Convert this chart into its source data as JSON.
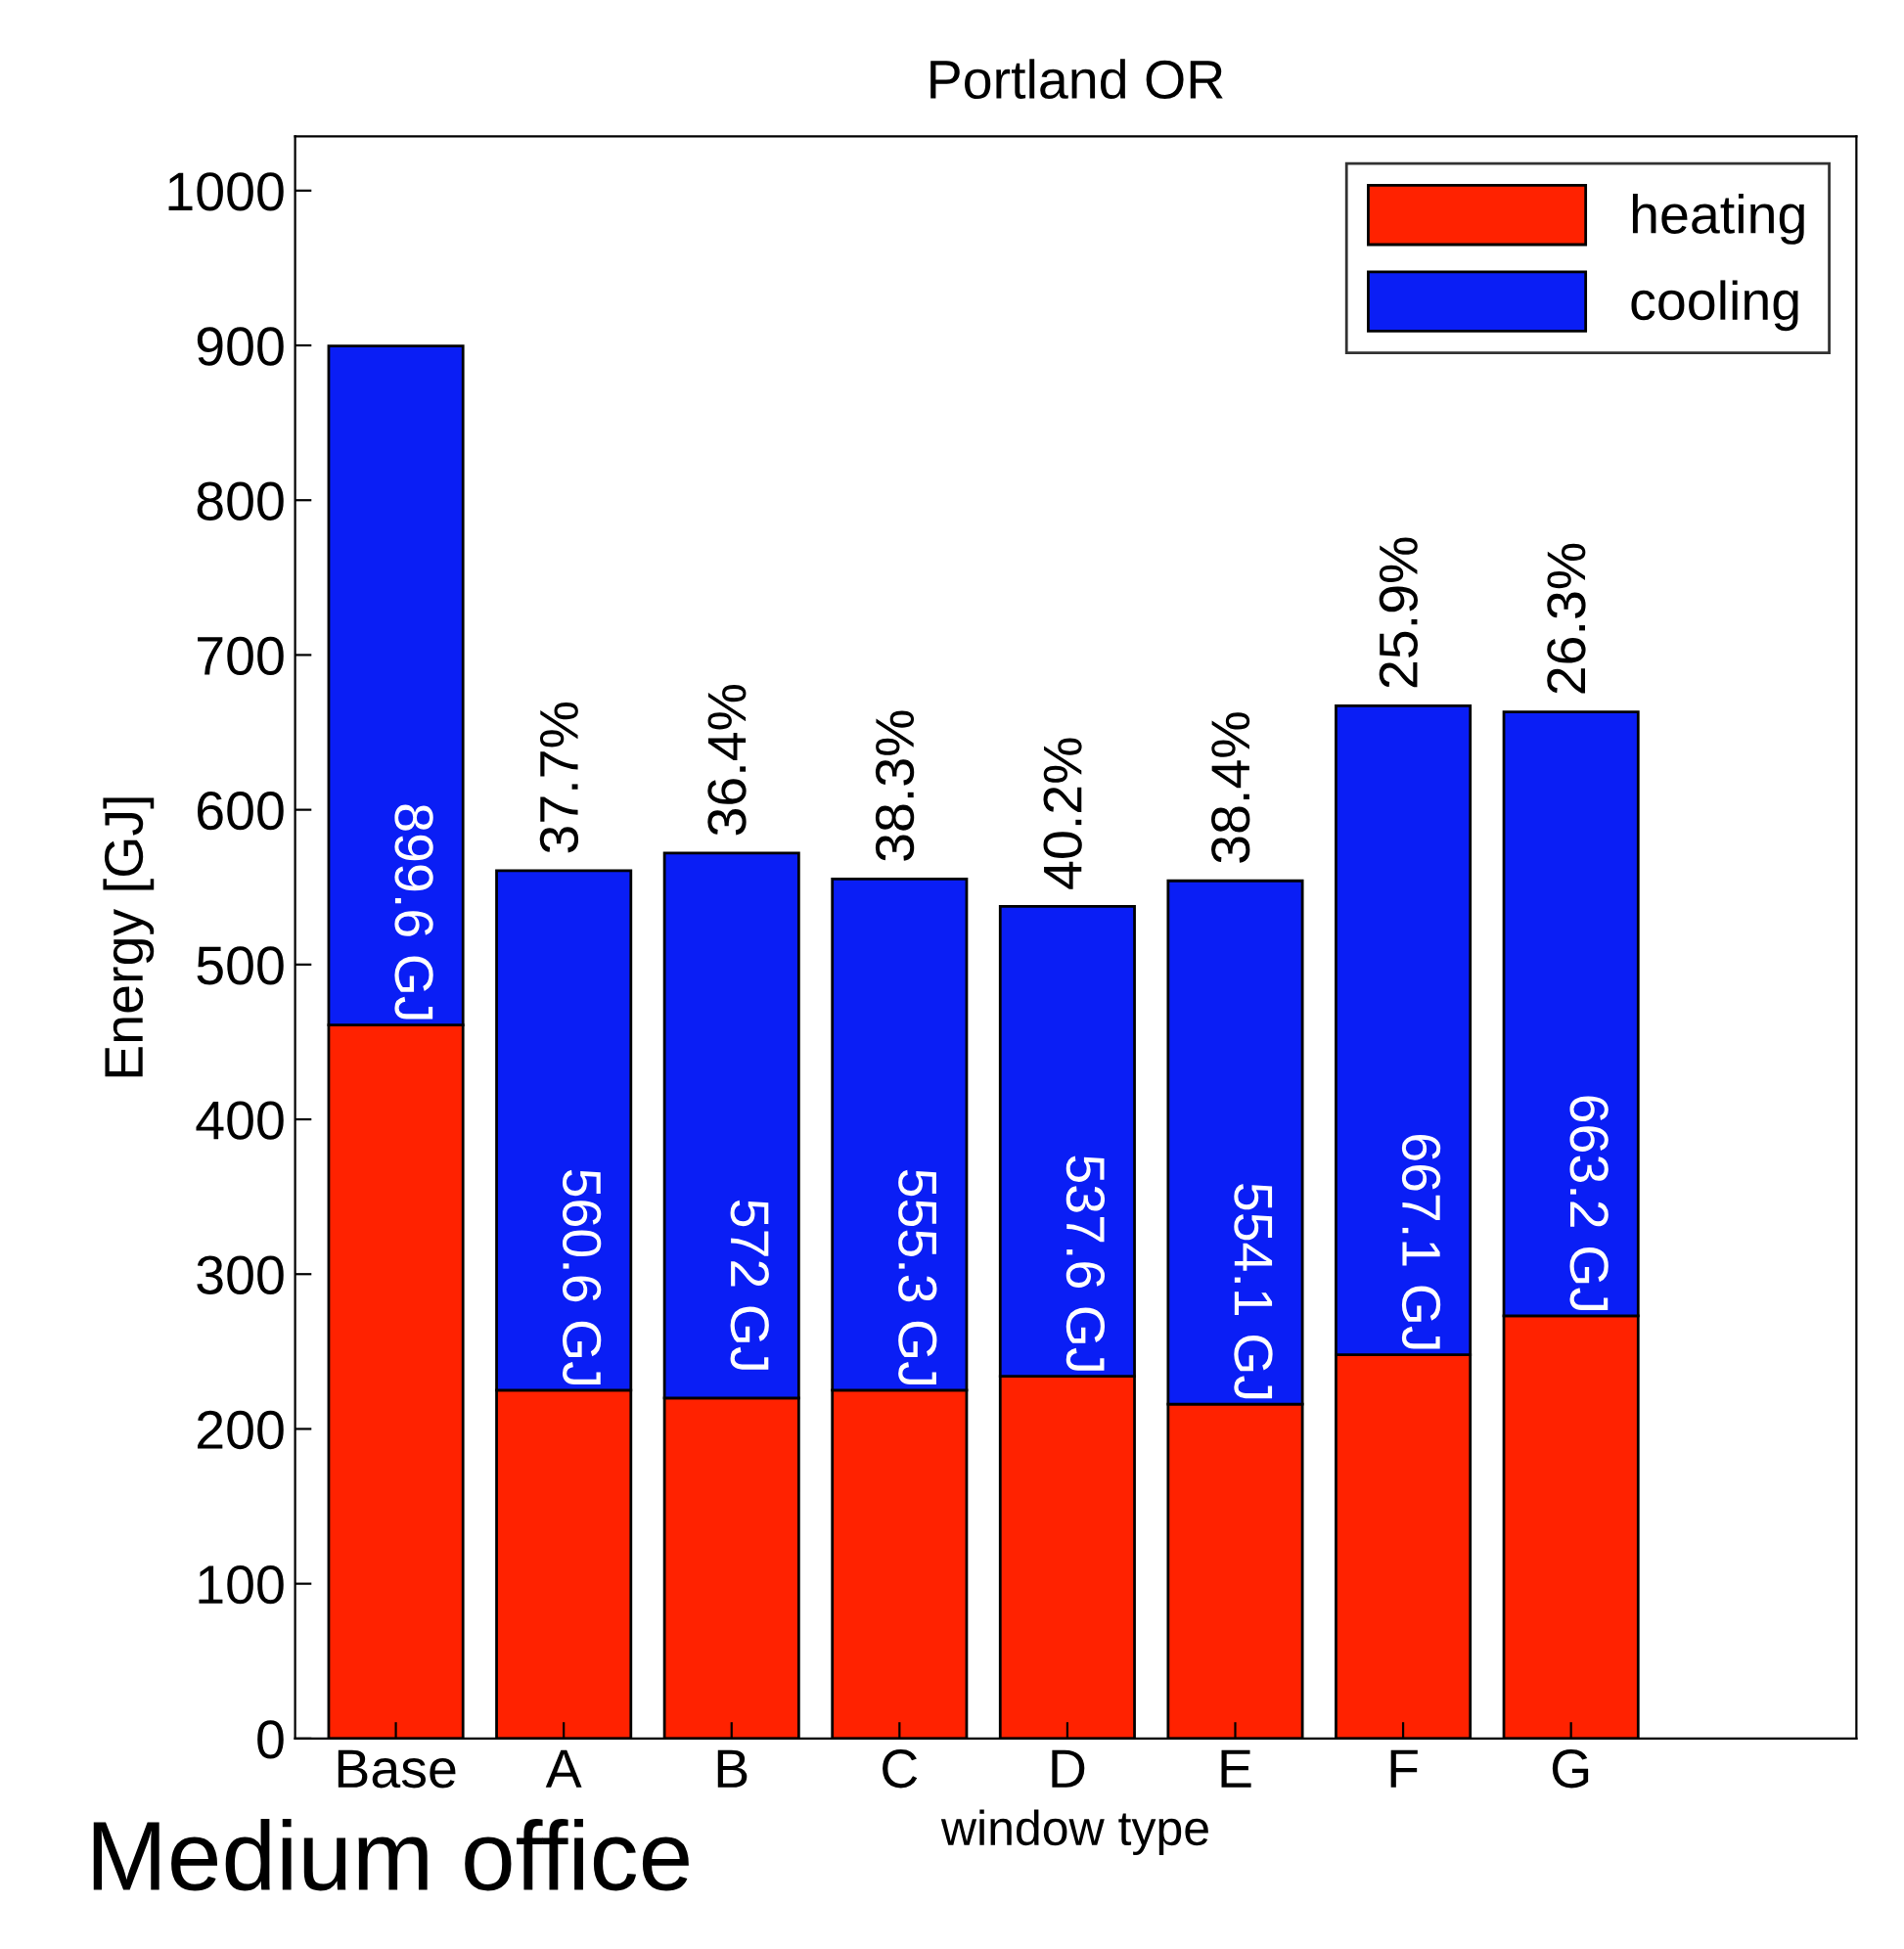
{
  "chart_data": {
    "type": "bar",
    "title": "Portland OR",
    "xlabel": "window type",
    "ylabel": "Energy [GJ]",
    "stacked": true,
    "categories": [
      "Base",
      "A",
      "B",
      "C",
      "D",
      "E",
      "F",
      "G"
    ],
    "series": [
      {
        "name": "heating",
        "color": "#ff2200",
        "values": [
          461,
          225,
          220,
          225,
          234,
          216,
          248,
          273
        ]
      },
      {
        "name": "cooling",
        "color": "#0a1ef5",
        "values": [
          438.6,
          335.6,
          352,
          330.3,
          303.6,
          338.1,
          419.1,
          390.2
        ]
      }
    ],
    "totals": [
      "899.6 GJ",
      "560.6 GJ",
      "572 GJ",
      "555.3 GJ",
      "537.6 GJ",
      "554.1 GJ",
      "667.1 GJ",
      "663.2 GJ"
    ],
    "annotations": [
      {
        "text": "37.7%",
        "x": "A",
        "y": 560.6
      },
      {
        "text": "36.4%",
        "x": "B",
        "y": 572
      },
      {
        "text": "38.3%",
        "x": "C",
        "y": 555.3
      },
      {
        "text": "40.2%",
        "x": "D",
        "y": 537.6
      },
      {
        "text": "38.4%",
        "x": "E",
        "y": 554.1
      },
      {
        "text": "25.9%",
        "x": "F",
        "y": 667.1
      },
      {
        "text": "26.3%",
        "x": "G",
        "y": 663.2
      },
      "Medium office"
    ],
    "ylim": [
      0,
      1035
    ],
    "yticks": [
      0,
      100,
      200,
      300,
      400,
      500,
      600,
      700,
      800,
      900,
      1000
    ],
    "grid": false,
    "legend": "top right"
  }
}
